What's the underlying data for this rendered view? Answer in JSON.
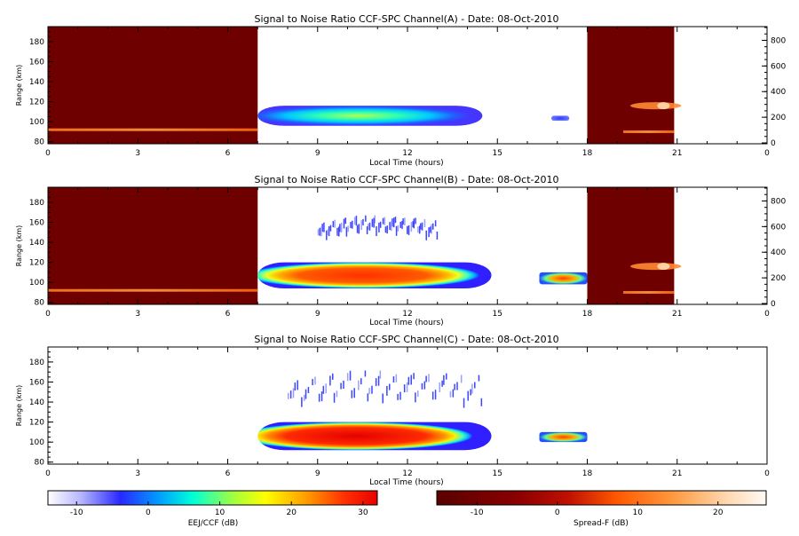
{
  "panels": [
    {
      "title": "Signal to Noise Ratio CCF-SPC Channel(A) - Date: 08-Oct-2010",
      "xlabel": "Local Time (hours)",
      "ylabel": "Range (km)"
    },
    {
      "title": "Signal to Noise Ratio CCF-SPC Channel(B) - Date: 08-Oct-2010",
      "xlabel": "Local Time (hours)",
      "ylabel": "Range (km)"
    },
    {
      "title": "Signal to Noise Ratio CCF-SPC Channel(C) - Date: 08-Oct-2010",
      "xlabel": "Local Time (hours)",
      "ylabel": "Range (km)"
    }
  ],
  "colorbars": [
    {
      "label": "EEJ/CCF (dB)",
      "ticks": [
        "-10",
        "0",
        "10",
        "20",
        "30"
      ],
      "range": [
        -14,
        32
      ]
    },
    {
      "label": "Spread-F (dB)",
      "ticks": [
        "-10",
        "0",
        "10",
        "20"
      ],
      "range": [
        -15,
        26
      ]
    }
  ],
  "colors": {
    "dark_red": "#6e0000",
    "background": "#ffffff"
  },
  "chart_data": [
    {
      "type": "heatmap",
      "title": "Signal to Noise Ratio CCF-SPC Channel(A) - Date: 08-Oct-2010",
      "xlabel": "Local Time (hours)",
      "ylabel": "Range (km)",
      "xlim": [
        0,
        24
      ],
      "ylim": [
        78,
        195
      ],
      "x_ticks": [
        "0",
        "3",
        "6",
        "9",
        "12",
        "15",
        "18",
        "21",
        "0"
      ],
      "y_ticks": [
        "80",
        "100",
        "120",
        "140",
        "160",
        "180"
      ],
      "y2_ticks": [
        "0",
        "200",
        "400",
        "600",
        "800"
      ],
      "spreadf_blocks": [
        {
          "x": [
            0,
            7
          ],
          "y": [
            78,
            195
          ]
        },
        {
          "x": [
            18,
            20.9
          ],
          "y": [
            78,
            195
          ]
        }
      ],
      "traces": [
        {
          "x": [
            0,
            7
          ],
          "y": 92,
          "value": 5
        },
        {
          "x": [
            19.2,
            20.9
          ],
          "y": 116,
          "value": 12
        },
        {
          "x": [
            19.2,
            20.9
          ],
          "y": 90,
          "value": 3
        }
      ],
      "echoes": [
        {
          "x": [
            7,
            14.5
          ],
          "y": [
            96,
            116
          ],
          "peak": 4
        },
        {
          "x": [
            16.8,
            17.4
          ],
          "y": [
            101,
            106
          ],
          "peak": -5
        }
      ]
    },
    {
      "type": "heatmap",
      "title": "Signal to Noise Ratio CCF-SPC Channel(B) - Date: 08-Oct-2010",
      "xlabel": "Local Time (hours)",
      "ylabel": "Range (km)",
      "xlim": [
        0,
        24
      ],
      "ylim": [
        78,
        195
      ],
      "x_ticks": [
        "0",
        "3",
        "6",
        "9",
        "12",
        "15",
        "18",
        "21",
        "0"
      ],
      "y_ticks": [
        "80",
        "100",
        "120",
        "140",
        "160",
        "180"
      ],
      "y2_ticks": [
        "0",
        "200",
        "400",
        "600",
        "800"
      ],
      "spreadf_blocks": [
        {
          "x": [
            0,
            7
          ],
          "y": [
            78,
            195
          ]
        },
        {
          "x": [
            18,
            20.9
          ],
          "y": [
            78,
            195
          ]
        }
      ],
      "traces": [
        {
          "x": [
            0,
            7
          ],
          "y": 92,
          "value": 5
        },
        {
          "x": [
            19.2,
            20.9
          ],
          "y": 116,
          "value": 12
        },
        {
          "x": [
            19.2,
            20.9
          ],
          "y": 90,
          "value": 3
        }
      ],
      "echoes": [
        {
          "x": [
            7,
            14.8
          ],
          "y": [
            94,
            120
          ],
          "peak": 30
        },
        {
          "x": [
            16.4,
            18
          ],
          "y": [
            98,
            110
          ],
          "peak": 26
        }
      ],
      "scatter_band": {
        "x": [
          9,
          13
        ],
        "y": [
          148,
          160
        ],
        "value": -6
      }
    },
    {
      "type": "heatmap",
      "title": "Signal to Noise Ratio CCF-SPC Channel(C) - Date: 08-Oct-2010",
      "xlabel": "Local Time (hours)",
      "ylabel": "Range (km)",
      "xlim": [
        0,
        24
      ],
      "ylim": [
        78,
        195
      ],
      "x_ticks": [
        "0",
        "3",
        "6",
        "9",
        "12",
        "15",
        "18",
        "21",
        "0"
      ],
      "y_ticks": [
        "80",
        "100",
        "120",
        "140",
        "160",
        "180"
      ],
      "echoes": [
        {
          "x": [
            7,
            14.8
          ],
          "y": [
            92,
            120
          ],
          "peak": 32
        },
        {
          "x": [
            16.4,
            18
          ],
          "y": [
            100,
            110
          ],
          "peak": 27
        }
      ],
      "scatter_band": {
        "x": [
          8,
          14.5
        ],
        "y": [
          140,
          165
        ],
        "value": -6
      }
    }
  ]
}
